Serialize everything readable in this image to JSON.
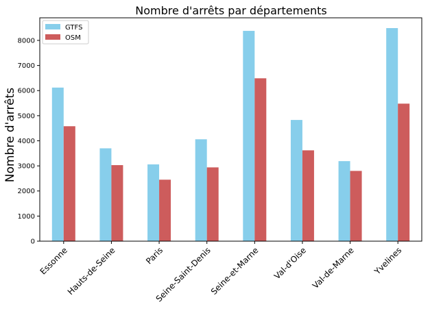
{
  "chart_data": {
    "type": "bar",
    "title": "Nombre d'arrêts par départements",
    "xlabel": "",
    "ylabel": "Nombre d'arrêts",
    "categories": [
      "Essonne",
      "Hauts-de-Seine",
      "Paris",
      "Seine-Saint-Denis",
      "Seine-et-Marne",
      "Val-d'Oise",
      "Val-de-Marne",
      "Yvelines"
    ],
    "series": [
      {
        "name": "GTFS",
        "color": "#87ceeb",
        "values": [
          6120,
          3700,
          3060,
          4060,
          8380,
          4830,
          3190,
          8490
        ]
      },
      {
        "name": "OSM",
        "color": "#cd5c5c",
        "values": [
          4580,
          3030,
          2450,
          2940,
          6490,
          3620,
          2800,
          5480
        ]
      }
    ],
    "ylim": [
      0,
      8900
    ],
    "yticks": [
      0,
      1000,
      2000,
      3000,
      4000,
      5000,
      6000,
      7000,
      8000
    ],
    "grid": false,
    "legend_position": "top-left"
  }
}
